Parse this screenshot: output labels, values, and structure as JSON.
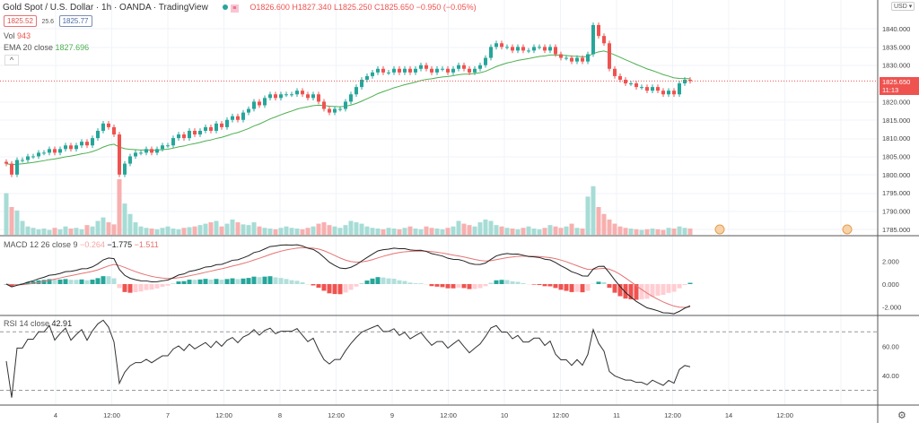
{
  "header": {
    "title": "Gold Spot / U.S. Dollar · 1h · OANDA · TradingView",
    "open": "O1826.600",
    "high": "H1827.340",
    "low": "L1825.250",
    "close": "C1825.650",
    "change": "−0.950 (−0.05%)",
    "bid": "1825.52",
    "spread": "25.6",
    "ask": "1825.77"
  },
  "vol_legend": {
    "label": "Vol",
    "value": "943"
  },
  "ema_legend": {
    "label": "EMA 20 close",
    "value": "1827.696"
  },
  "macd_legend": {
    "label": "MACD 12 26 close 9",
    "hist": "−0.264",
    "macd": "−1.775",
    "signal": "−1.511"
  },
  "rsi_legend": {
    "label": "RSI 14 close",
    "value": "42.91"
  },
  "currency": "USD",
  "last_price": {
    "value": "1825.650",
    "countdown": "11:13"
  },
  "colors": {
    "up": "#26a69a",
    "down": "#ef5350",
    "ema": "#4caf50",
    "last": "#ef5350"
  },
  "chart_data": {
    "type": "candlestick",
    "price_ticks": [
      "1840.000",
      "1835.000",
      "1830.000",
      "1820.000",
      "1815.000",
      "1810.000",
      "1805.000",
      "1800.000",
      "1795.000",
      "1790.000",
      "1785.000"
    ],
    "price_range": [
      1783,
      1846
    ],
    "macd_ticks": [
      "2.000",
      "0.000",
      "-2.000"
    ],
    "rsi_ticks": [
      "80.00",
      "60.00",
      "40.00"
    ],
    "rsi_bands": [
      70,
      30
    ],
    "time_ticks": [
      "4",
      "12:00",
      "7",
      "12:00",
      "8",
      "12:00",
      "9",
      "12:00",
      "10",
      "12:00",
      "11",
      "12:00",
      "14",
      "12:00"
    ],
    "closes": [
      1803,
      1800,
      1804,
      1804,
      1805,
      1805,
      1806,
      1806,
      1807,
      1806,
      1807,
      1808,
      1807,
      1808,
      1809,
      1808,
      1810,
      1812,
      1814,
      1813,
      1811,
      1800,
      1803,
      1805,
      1806,
      1806,
      1807,
      1806,
      1807,
      1808,
      1808,
      1810,
      1811,
      1810,
      1812,
      1811,
      1812,
      1813,
      1812,
      1814,
      1813,
      1815,
      1816,
      1815,
      1817,
      1818,
      1820,
      1819,
      1821,
      1822,
      1821,
      1822,
      1822,
      1822,
      1823,
      1822,
      1821,
      1822,
      1820,
      1818,
      1817,
      1818,
      1818,
      1820,
      1822,
      1824,
      1826,
      1827,
      1828,
      1829,
      1828,
      1828,
      1829,
      1828,
      1829,
      1828,
      1829,
      1830,
      1829,
      1828,
      1829,
      1829,
      1828,
      1829,
      1830,
      1829,
      1828,
      1829,
      1830,
      1832,
      1835,
      1836,
      1835,
      1835,
      1834,
      1835,
      1834,
      1834,
      1835,
      1835,
      1834,
      1835,
      1833,
      1832,
      1832,
      1831,
      1832,
      1831,
      1833,
      1841,
      1838,
      1836,
      1829,
      1827,
      1826,
      1825,
      1825,
      1824,
      1824,
      1823,
      1824,
      1823,
      1822,
      1823,
      1822,
      1825,
      1826,
      1825.65
    ],
    "volumes": [
      60,
      40,
      35,
      20,
      12,
      10,
      8,
      9,
      7,
      10,
      8,
      12,
      9,
      10,
      8,
      14,
      12,
      20,
      25,
      18,
      15,
      80,
      45,
      30,
      18,
      12,
      10,
      9,
      8,
      10,
      12,
      9,
      8,
      10,
      11,
      12,
      14,
      16,
      18,
      20,
      12,
      16,
      22,
      18,
      15,
      14,
      18,
      12,
      10,
      9,
      8,
      10,
      12,
      10,
      9,
      8,
      10,
      12,
      16,
      18,
      14,
      12,
      10,
      14,
      20,
      18,
      16,
      12,
      10,
      9,
      8,
      10,
      9,
      8,
      10,
      12,
      9,
      8,
      12,
      10,
      9,
      8,
      10,
      12,
      20,
      16,
      14,
      12,
      18,
      22,
      20,
      14,
      12,
      10,
      9,
      8,
      10,
      12,
      9,
      8,
      10,
      14,
      12,
      10,
      12,
      16,
      10,
      9,
      55,
      70,
      40,
      30,
      22,
      16,
      12,
      10,
      9,
      8,
      7,
      8,
      9,
      8,
      7,
      10,
      9,
      12,
      10,
      9
    ]
  }
}
